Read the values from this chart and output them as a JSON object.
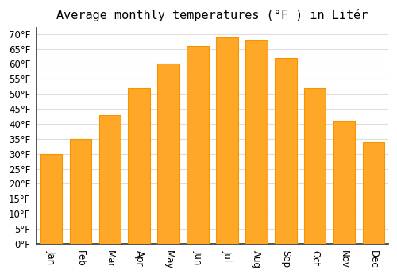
{
  "title": "Average monthly temperatures (°F ) in Litér",
  "months": [
    "Jan",
    "Feb",
    "Mar",
    "Apr",
    "May",
    "Jun",
    "Jul",
    "Aug",
    "Sep",
    "Oct",
    "Nov",
    "Dec"
  ],
  "values": [
    30,
    35,
    43,
    52,
    60,
    66,
    69,
    68,
    62,
    52,
    41,
    34
  ],
  "bar_color": "#FFA726",
  "bar_edgecolor": "#F59300",
  "background_color": "#ffffff",
  "grid_color": "#dddddd",
  "spine_color": "#333333",
  "ylim": [
    0,
    72
  ],
  "yticks": [
    0,
    5,
    10,
    15,
    20,
    25,
    30,
    35,
    40,
    45,
    50,
    55,
    60,
    65,
    70
  ],
  "title_fontsize": 11,
  "tick_fontsize": 8.5,
  "bar_width": 0.75
}
